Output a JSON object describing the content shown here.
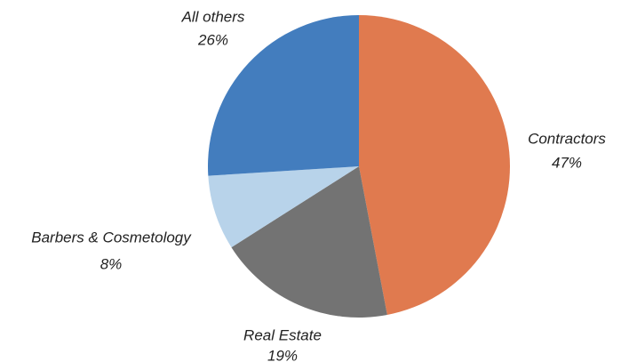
{
  "chart_data": {
    "type": "pie",
    "categories": [
      "Contractors",
      "Real Estate",
      "Barbers & Cosmetology",
      "All others"
    ],
    "values": [
      47,
      19,
      8,
      26
    ],
    "value_labels": [
      "47%",
      "19%",
      "8%",
      "26%"
    ],
    "colors": [
      "#e07a4f",
      "#737373",
      "#b8d3ea",
      "#437dbe"
    ]
  }
}
